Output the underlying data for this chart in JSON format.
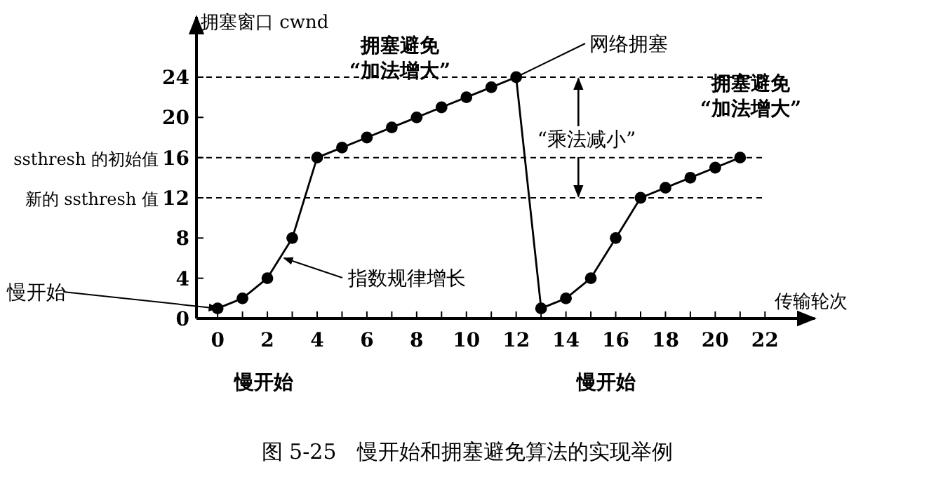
{
  "chart_data": {
    "type": "line",
    "ylabel": "拥塞窗口 cwnd",
    "xlabel": "传输轮次",
    "color": "#000000",
    "marker": "circle",
    "x": [
      0,
      1,
      2,
      3,
      4,
      5,
      6,
      7,
      8,
      9,
      10,
      11,
      12,
      13,
      14,
      15,
      16,
      17,
      18,
      19,
      20,
      21
    ],
    "values": [
      1,
      2,
      4,
      8,
      16,
      17,
      18,
      19,
      20,
      21,
      22,
      23,
      24,
      1,
      2,
      4,
      8,
      12,
      13,
      14,
      15,
      16
    ],
    "xlim": [
      -0.85,
      24
    ],
    "ylim": [
      0,
      30
    ],
    "xticks": [
      0,
      {
        "value": 1,
        "label": null
      },
      2,
      {
        "value": 3,
        "label": null
      },
      4,
      {
        "value": 5,
        "label": null
      },
      6,
      {
        "value": 7,
        "label": null
      },
      8,
      {
        "value": 9,
        "label": null
      },
      10,
      {
        "value": 11,
        "label": null
      },
      12,
      {
        "value": 13,
        "label": null
      },
      14,
      {
        "value": 15,
        "label": null
      },
      16,
      {
        "value": 17,
        "label": null
      },
      18,
      {
        "value": 19,
        "label": null
      },
      20,
      {
        "value": 21,
        "label": null
      },
      22
    ],
    "yticks": [
      0,
      4,
      8,
      12,
      16,
      20,
      24
    ],
    "ref_lines": [
      {
        "axis": "y",
        "value": 24,
        "line_style": "dashed"
      },
      {
        "axis": "y",
        "value": 16,
        "label": "ssthresh 的初始值",
        "line_style": "dashed"
      },
      {
        "axis": "y",
        "value": 12,
        "label": "新的 ssthresh 值",
        "line_style": "dashed"
      }
    ],
    "annotations": [
      "拥塞避免",
      "“加法增大”",
      {
        "text": "网络拥塞",
        "x": 12,
        "y": 24
      },
      {
        "text": "“乘法减小”",
        "x": 14.5,
        "y": 24
      },
      "拥塞避免",
      "“加法增大”",
      {
        "text": "指数规律增长",
        "x": 2.5,
        "y": 6
      },
      {
        "text": "慢开始",
        "x": 0,
        "y": 1
      },
      "慢开始",
      "慢开始",
      "图 5-25　慢开始和拥塞避免算法的实现举例"
    ]
  }
}
